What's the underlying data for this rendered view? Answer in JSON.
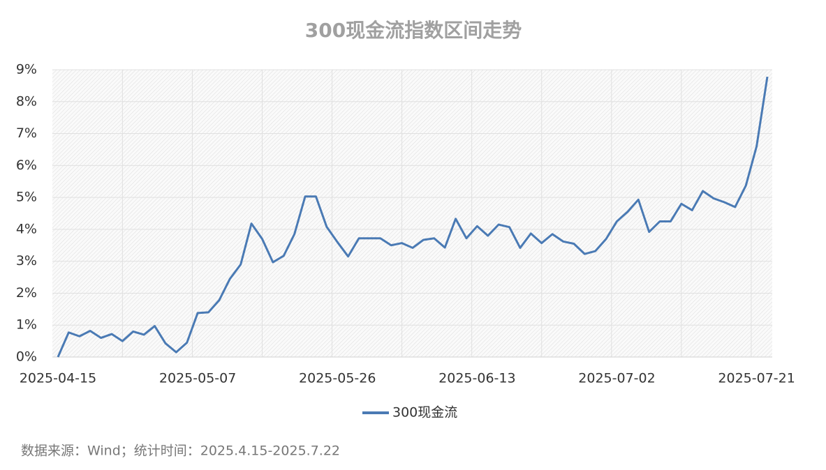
{
  "chart_data": {
    "type": "line",
    "title": "300现金流指数区间走势",
    "categories": [
      "2025-04-15",
      null,
      null,
      null,
      null,
      null,
      null,
      null,
      null,
      null,
      null,
      null,
      null,
      "2025-05-07",
      null,
      null,
      null,
      null,
      null,
      null,
      null,
      null,
      null,
      null,
      null,
      null,
      "2025-05-26",
      null,
      null,
      null,
      null,
      null,
      null,
      null,
      null,
      null,
      null,
      null,
      null,
      "2025-06-13",
      null,
      null,
      null,
      null,
      null,
      null,
      null,
      null,
      null,
      null,
      null,
      null,
      "2025-07-02",
      null,
      null,
      null,
      null,
      null,
      null,
      null,
      null,
      null,
      null,
      null,
      null,
      "2025-07-21",
      null
    ],
    "series": [
      {
        "name": "300现金流",
        "color": "#4a7ab4",
        "values": [
          0,
          0.77,
          0.65,
          0.82,
          0.6,
          0.72,
          0.5,
          0.8,
          0.7,
          0.97,
          0.43,
          0.15,
          0.45,
          1.38,
          1.4,
          1.78,
          2.45,
          2.9,
          4.18,
          3.7,
          2.97,
          3.17,
          3.85,
          5.03,
          5.03,
          4.08,
          3.6,
          3.15,
          3.72,
          3.72,
          3.72,
          3.5,
          3.57,
          3.42,
          3.67,
          3.72,
          3.43,
          4.33,
          3.72,
          4.1,
          3.8,
          4.15,
          4.07,
          3.42,
          3.87,
          3.57,
          3.85,
          3.62,
          3.55,
          3.23,
          3.32,
          3.7,
          4.25,
          4.55,
          4.93,
          3.92,
          4.25,
          4.25,
          4.8,
          4.6,
          5.2,
          4.97,
          4.85,
          4.7,
          5.37,
          6.6,
          8.78
        ]
      }
    ],
    "ylim": [
      0,
      9
    ],
    "yticks": [
      {
        "value": 0,
        "label": "0%"
      },
      {
        "value": 1,
        "label": "1%"
      },
      {
        "value": 2,
        "label": "2%"
      },
      {
        "value": 3,
        "label": "3%"
      },
      {
        "value": 4,
        "label": "4%"
      },
      {
        "value": 5,
        "label": "5%"
      },
      {
        "value": 6,
        "label": "6%"
      },
      {
        "value": 7,
        "label": "7%"
      },
      {
        "value": 8,
        "label": "8%"
      },
      {
        "value": 9,
        "label": "9%"
      }
    ],
    "grid": true,
    "legend": "bottom",
    "note": "数据来源：Wind；统计时间：2025.4.15-2025.7.22"
  }
}
